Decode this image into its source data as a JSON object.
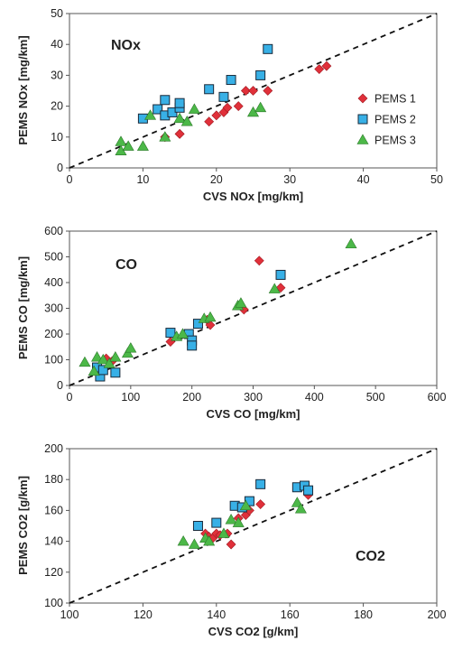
{
  "chart_data": [
    {
      "type": "scatter",
      "panel_label": "NOx",
      "xlabel": "CVS NOx [mg/km]",
      "ylabel": "PEMS NOx [mg/km]",
      "xlim": [
        0,
        50
      ],
      "ylim": [
        0,
        50
      ],
      "xticks": [
        0,
        10,
        20,
        30,
        40,
        50
      ],
      "yticks": [
        0,
        10,
        20,
        30,
        40,
        50
      ],
      "reference_line": {
        "style": "dashed",
        "x": [
          0,
          50
        ],
        "y": [
          0,
          50
        ]
      },
      "legend": {
        "position": "right",
        "entries": [
          "PEMS 1",
          "PEMS 2",
          "PEMS 3"
        ]
      },
      "series": [
        {
          "name": "PEMS 1",
          "marker": "diamond",
          "color": "#e0303a",
          "x": [
            15,
            19,
            20,
            21,
            21.5,
            23,
            24,
            25,
            27,
            34,
            35,
            13,
            15
          ],
          "y": [
            11,
            15,
            17,
            18,
            19.5,
            20,
            25,
            25,
            25,
            32,
            33,
            10,
            11
          ]
        },
        {
          "name": "PEMS 2",
          "marker": "square",
          "color": "#38b0e6",
          "x": [
            10,
            12,
            13,
            13,
            14,
            15,
            15,
            19,
            21,
            22,
            26,
            27
          ],
          "y": [
            16,
            19,
            17,
            22,
            18,
            19.5,
            21,
            25.5,
            23,
            28.5,
            30,
            38.5
          ]
        },
        {
          "name": "PEMS 3",
          "marker": "triangle",
          "color": "#4cb848",
          "x": [
            7,
            7,
            8,
            10,
            11,
            13,
            15,
            16,
            17,
            25,
            26
          ],
          "y": [
            5.5,
            8.5,
            7,
            7,
            17,
            10,
            16,
            15,
            19,
            18,
            19.5
          ]
        }
      ]
    },
    {
      "type": "scatter",
      "panel_label": "CO",
      "xlabel": "CVS CO [mg/km]",
      "ylabel": "PEMS CO [mg/km]",
      "xlim": [
        0,
        600
      ],
      "ylim": [
        0,
        600
      ],
      "xticks": [
        0,
        100,
        200,
        300,
        400,
        500,
        600
      ],
      "yticks": [
        0,
        100,
        200,
        300,
        400,
        500,
        600
      ],
      "reference_line": {
        "style": "dashed",
        "x": [
          0,
          600
        ],
        "y": [
          0,
          600
        ]
      },
      "series": [
        {
          "name": "PEMS 1",
          "marker": "diamond",
          "color": "#e0303a",
          "x": [
            60,
            70,
            165,
            225,
            230,
            285,
            310,
            345
          ],
          "y": [
            105,
            95,
            170,
            255,
            235,
            295,
            485,
            380
          ]
        },
        {
          "name": "PEMS 2",
          "marker": "square",
          "color": "#38b0e6",
          "x": [
            45,
            50,
            55,
            75,
            165,
            195,
            200,
            200,
            210,
            345
          ],
          "y": [
            70,
            35,
            60,
            50,
            205,
            200,
            175,
            155,
            240,
            430
          ]
        },
        {
          "name": "PEMS 3",
          "marker": "triangle",
          "color": "#4cb848",
          "x": [
            25,
            40,
            45,
            55,
            65,
            75,
            95,
            100,
            175,
            185,
            220,
            230,
            275,
            280,
            335,
            460
          ],
          "y": [
            90,
            55,
            110,
            100,
            85,
            110,
            125,
            145,
            190,
            200,
            260,
            265,
            310,
            320,
            375,
            550
          ]
        }
      ]
    },
    {
      "type": "scatter",
      "panel_label": "CO2",
      "xlabel": "CVS CO2 [g/km]",
      "ylabel": "PEMS CO2 [g/km]",
      "xlim": [
        100,
        200
      ],
      "ylim": [
        100,
        200
      ],
      "xticks": [
        100,
        120,
        140,
        160,
        180,
        200
      ],
      "yticks": [
        100,
        120,
        140,
        160,
        180,
        200
      ],
      "reference_line": {
        "style": "dashed",
        "x": [
          100,
          200
        ],
        "y": [
          100,
          200
        ]
      },
      "series": [
        {
          "name": "PEMS 1",
          "marker": "diamond",
          "color": "#e0303a",
          "x": [
            137,
            138,
            139,
            140,
            141,
            143,
            144,
            146,
            148,
            149,
            152,
            165
          ],
          "y": [
            145,
            143,
            142,
            145,
            144,
            145,
            138,
            155,
            157,
            160,
            164,
            170
          ]
        },
        {
          "name": "PEMS 2",
          "marker": "square",
          "color": "#38b0e6",
          "x": [
            135,
            140,
            145,
            147,
            149,
            152,
            162,
            164,
            165
          ],
          "y": [
            150,
            152,
            163,
            162,
            166,
            177,
            175,
            176,
            173
          ]
        },
        {
          "name": "PEMS 3",
          "marker": "triangle",
          "color": "#4cb848",
          "x": [
            131,
            134,
            137,
            138,
            142,
            144,
            146,
            148,
            162,
            163
          ],
          "y": [
            140,
            138,
            142,
            140,
            145,
            154,
            152,
            163,
            165,
            161
          ]
        }
      ]
    }
  ]
}
